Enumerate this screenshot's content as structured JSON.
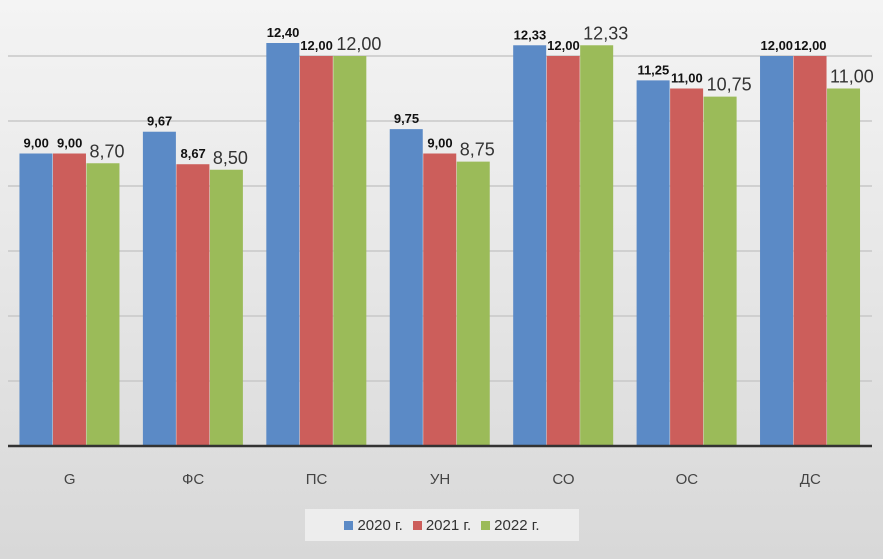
{
  "chart_data": {
    "type": "bar",
    "title": "",
    "xlabel": "",
    "ylabel": "",
    "ylim": [
      0,
      14
    ],
    "grid": true,
    "gridline_step": 2,
    "y_tick_labels_shown": false,
    "legend_position": "bottom",
    "categories": [
      "G",
      "ФС",
      "ПС",
      "УН",
      "СО",
      "ОС",
      "ДС"
    ],
    "series": [
      {
        "name": "2020 г.",
        "color": "#5b8ac6",
        "values": [
          9.0,
          9.67,
          12.4,
          9.75,
          12.33,
          11.25,
          12.0
        ],
        "labels": [
          "9,00",
          "9,67",
          "12,40",
          "9,75",
          "12,33",
          "11,25",
          "12,00"
        ],
        "label_style": "bold"
      },
      {
        "name": "2021 г.",
        "color": "#cc5e5b",
        "values": [
          9.0,
          8.67,
          12.0,
          9.0,
          12.0,
          11.0,
          12.0
        ],
        "labels": [
          "9,00",
          "8,67",
          "12,00",
          "9,00",
          "12,00",
          "11,00",
          "12,00"
        ],
        "label_style": "bold"
      },
      {
        "name": "2022 г.",
        "color": "#9bbb59",
        "values": [
          8.7,
          8.5,
          12.0,
          8.75,
          12.33,
          10.75,
          11.0
        ],
        "labels": [
          "8,70",
          "8,50",
          "12,00",
          "8,75",
          "12,33",
          "10,75",
          "11,00"
        ],
        "label_style": "regular"
      }
    ]
  }
}
